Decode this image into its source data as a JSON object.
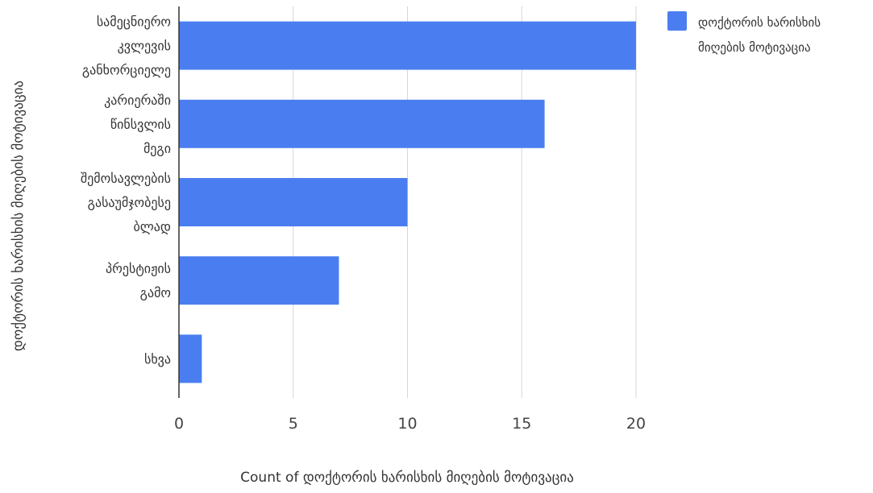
{
  "chart_data": {
    "type": "bar",
    "orientation": "horizontal",
    "categories": [
      [
        "სამეცნიერო",
        "კვლევის",
        "განხორციელე"
      ],
      [
        "კარიერაში",
        "წინსვლის",
        "მეგი"
      ],
      [
        "შემოსავლების",
        "გასაუმჯობესე",
        "ბლად"
      ],
      [
        "პრესტიჟის",
        "გამო"
      ],
      [
        "სხვა"
      ]
    ],
    "series": [
      {
        "name": "დოქტორის ხარისხის მიღების მოტივაცია",
        "values": [
          20,
          16,
          10,
          7,
          1
        ]
      }
    ],
    "xlabel": "Count of დოქტორის ხარისხის მიღების მოტივაცია",
    "ylabel": "დოქტორის ხარისხის მიღების მოტივაცია",
    "xlim": [
      0,
      20
    ],
    "xticks": [
      0,
      5,
      10,
      15,
      20
    ],
    "grid": true,
    "legend_position": "top-right",
    "colors": {
      "bar": "#4a7ef0",
      "grid": "#d6d6d6",
      "axis": "#333333"
    }
  }
}
